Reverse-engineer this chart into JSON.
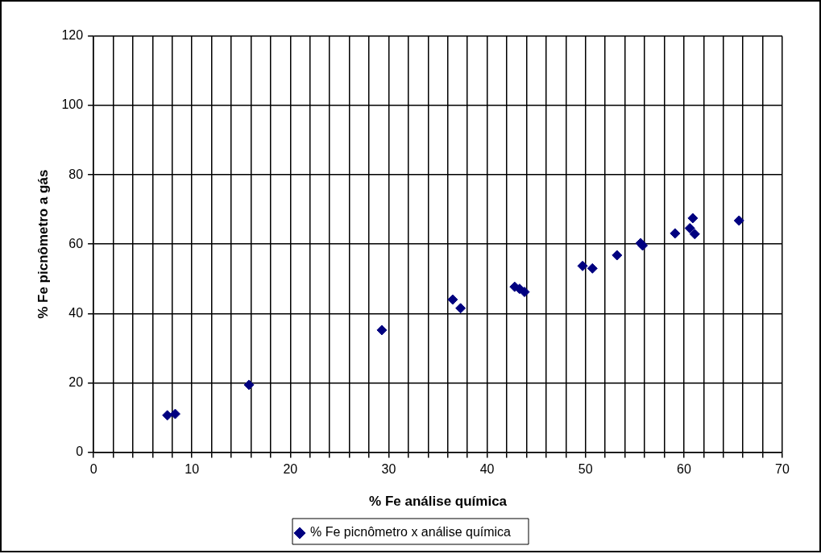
{
  "chart_data": {
    "type": "scatter",
    "xlabel": "% Fe análise química",
    "ylabel": "% Fe picnômetro a gás",
    "xlim": [
      0,
      70
    ],
    "xticks": [
      0,
      {
        "value": 2,
        "label": null
      },
      {
        "value": 4,
        "label": null
      },
      {
        "value": 6,
        "label": null
      },
      {
        "value": 8,
        "label": null
      },
      10,
      {
        "value": 12,
        "label": null
      },
      {
        "value": 14,
        "label": null
      },
      {
        "value": 16,
        "label": null
      },
      {
        "value": 18,
        "label": null
      },
      20,
      {
        "value": 22,
        "label": null
      },
      {
        "value": 24,
        "label": null
      },
      {
        "value": 26,
        "label": null
      },
      {
        "value": 28,
        "label": null
      },
      30,
      {
        "value": 32,
        "label": null
      },
      {
        "value": 34,
        "label": null
      },
      {
        "value": 36,
        "label": null
      },
      {
        "value": 38,
        "label": null
      },
      40,
      {
        "value": 42,
        "label": null
      },
      {
        "value": 44,
        "label": null
      },
      {
        "value": 46,
        "label": null
      },
      {
        "value": 48,
        "label": null
      },
      50,
      {
        "value": 52,
        "label": null
      },
      {
        "value": 54,
        "label": null
      },
      {
        "value": 56,
        "label": null
      },
      {
        "value": 58,
        "label": null
      },
      60,
      {
        "value": 62,
        "label": null
      },
      {
        "value": 64,
        "label": null
      },
      {
        "value": 66,
        "label": null
      },
      {
        "value": 68,
        "label": null
      },
      70
    ],
    "ylim": [
      0,
      120
    ],
    "yticks": [
      0,
      20,
      40,
      60,
      80,
      100,
      120
    ],
    "grid": true,
    "legend": "bottom",
    "marker": "diamond",
    "series": [
      {
        "name": "% Fe picnômetro x análise química",
        "color": "#000080",
        "x": [
          7.5,
          8.3,
          15.8,
          29.3,
          36.5,
          37.3,
          42.8,
          43.3,
          43.8,
          49.7,
          50.7,
          53.2,
          55.6,
          55.8,
          59.1,
          60.6,
          60.9,
          61.1,
          65.6
        ],
        "values": [
          10.6,
          11,
          19.4,
          35.2,
          44,
          41.5,
          47.7,
          47.1,
          46.2,
          53.7,
          53,
          56.8,
          60.3,
          59.6,
          63.1,
          64.6,
          67.5,
          62.9,
          66.8
        ]
      }
    ]
  }
}
